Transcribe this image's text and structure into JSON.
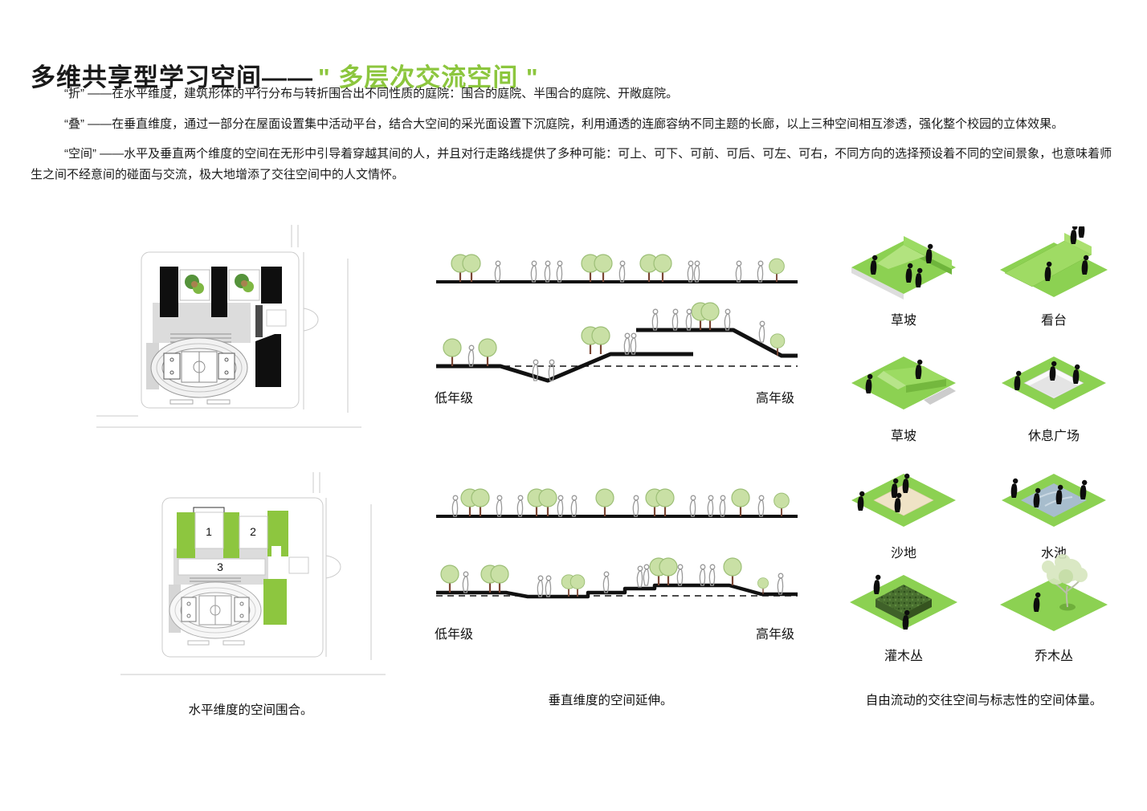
{
  "title": {
    "black": "多维共享型学习空间——",
    "green": "\" 多层次交流空间 \""
  },
  "paragraphs": [
    "“折” ——在水平维度，建筑形体的平行分布与转折围合出不同性质的庭院：围合的庭院、半围合的庭院、开敞庭院。",
    "“叠” ——在垂直维度，通过一部分在屋面设置集中活动平台，结合大空间的采光面设置下沉庭院，利用通透的连廊容纳不同主题的长廊，以上三种空间相互渗透，强化整个校园的立体效果。",
    "“空间” ——水平及垂直两个维度的空间在无形中引导着穿越其间的人，并且对行走路线提供了多种可能：可上、可下、可前、可后、可左、可右，不同方向的选择预设着不同的空间景象，也意味着师生之间不经意间的碰面与交流，极大地增添了交往空间中的人文情怀。"
  ],
  "sections": {
    "upper": {
      "left": "低年级",
      "right": "高年级"
    },
    "lower": {
      "left": "低年级",
      "right": "高年级"
    }
  },
  "plan2": {
    "area1": "1",
    "area2": "2",
    "area3": "3"
  },
  "axon": {
    "items": [
      {
        "label": "草坡"
      },
      {
        "label": "看台"
      },
      {
        "label": "草坡"
      },
      {
        "label": "休息广场"
      },
      {
        "label": "沙地"
      },
      {
        "label": "水池"
      },
      {
        "label": "灌木丛"
      },
      {
        "label": "乔木丛"
      }
    ]
  },
  "captions": {
    "left": "水平维度的空间围合。",
    "middle": "垂直维度的空间延伸。",
    "right": "自由流动的交往空间与标志性的空间体量。"
  },
  "colors": {
    "title_green": "#8CC63E",
    "plan_green": "#8DC63F",
    "axon_plane_green": "#8CD152",
    "tree_foliage": "#C9E0A5",
    "trunk_brown": "#7A4634",
    "water_blue": "#A7BDCD",
    "sand_tan": "#EFE3C6"
  }
}
